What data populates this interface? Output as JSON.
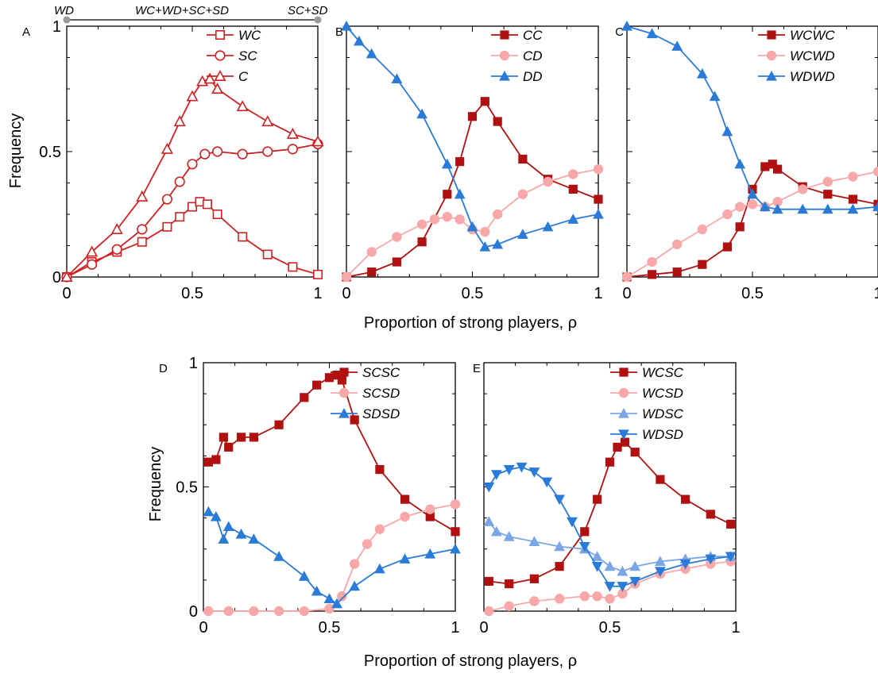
{
  "figure": {
    "xlabel": "Proportion of strong players, ρ",
    "ylabel": "Frequency",
    "phase_labels": [
      "WD",
      "WC+WD+SC+SD",
      "SC+SD"
    ]
  },
  "colors": {
    "dark_red": "#b01010",
    "pink": "#f8a8a8",
    "blue": "#2a7ad8",
    "light_blue": "#7aa6e6",
    "phase_dot": "#999999"
  },
  "chart_data": [
    {
      "panel": "A",
      "type": "line",
      "xlim": [
        0,
        1
      ],
      "ylim": [
        0,
        1
      ],
      "xticks": [
        0,
        0.5,
        1
      ],
      "yticks": [
        0,
        0.5,
        1
      ],
      "xtick_labels": [
        "0",
        "0.5",
        "1"
      ],
      "ytick_labels": [
        "0",
        "0.5",
        "1"
      ],
      "legend_position": "top-right",
      "series": [
        {
          "name": "WC",
          "color": "#cc2222",
          "marker": "square-open",
          "x": [
            0,
            0.1,
            0.2,
            0.3,
            0.4,
            0.45,
            0.5,
            0.53,
            0.56,
            0.6,
            0.7,
            0.8,
            0.9,
            1
          ],
          "y": [
            0,
            0.06,
            0.1,
            0.14,
            0.2,
            0.24,
            0.28,
            0.3,
            0.29,
            0.25,
            0.16,
            0.09,
            0.04,
            0.01
          ]
        },
        {
          "name": "SC",
          "color": "#cc2222",
          "marker": "circle-open",
          "x": [
            0,
            0.1,
            0.2,
            0.3,
            0.4,
            0.45,
            0.5,
            0.55,
            0.6,
            0.7,
            0.8,
            0.9,
            1
          ],
          "y": [
            0,
            0.05,
            0.11,
            0.19,
            0.31,
            0.38,
            0.45,
            0.49,
            0.5,
            0.49,
            0.5,
            0.51,
            0.53
          ]
        },
        {
          "name": "C",
          "color": "#cc2222",
          "marker": "triangle-open",
          "x": [
            0,
            0.1,
            0.2,
            0.3,
            0.4,
            0.45,
            0.5,
            0.54,
            0.57,
            0.6,
            0.7,
            0.8,
            0.9,
            1
          ],
          "y": [
            0,
            0.1,
            0.19,
            0.32,
            0.51,
            0.62,
            0.72,
            0.78,
            0.79,
            0.75,
            0.68,
            0.62,
            0.57,
            0.54
          ]
        }
      ]
    },
    {
      "panel": "B",
      "type": "line",
      "xlim": [
        0,
        1
      ],
      "ylim": [
        0,
        1
      ],
      "xticks": [
        0,
        0.5,
        1
      ],
      "yticks": [
        0,
        0.5,
        1
      ],
      "xtick_labels": [
        "0",
        "0.5",
        "1"
      ],
      "ytick_labels": [],
      "legend_position": "top-right",
      "series": [
        {
          "name": "CC",
          "color": "#b01010",
          "marker": "square",
          "x": [
            0,
            0.1,
            0.2,
            0.3,
            0.4,
            0.45,
            0.5,
            0.55,
            0.6,
            0.7,
            0.8,
            0.9,
            1
          ],
          "y": [
            0,
            0.02,
            0.06,
            0.14,
            0.33,
            0.46,
            0.64,
            0.7,
            0.62,
            0.47,
            0.39,
            0.35,
            0.31
          ]
        },
        {
          "name": "CD",
          "color": "#f8a8a8",
          "marker": "circle",
          "x": [
            0,
            0.1,
            0.2,
            0.3,
            0.35,
            0.4,
            0.45,
            0.5,
            0.55,
            0.6,
            0.7,
            0.8,
            0.9,
            1
          ],
          "y": [
            0,
            0.1,
            0.16,
            0.21,
            0.23,
            0.24,
            0.23,
            0.19,
            0.18,
            0.25,
            0.33,
            0.38,
            0.41,
            0.43
          ]
        },
        {
          "name": "DD",
          "color": "#2a7ad8",
          "marker": "triangle",
          "x": [
            0,
            0.05,
            0.1,
            0.2,
            0.3,
            0.4,
            0.45,
            0.5,
            0.55,
            0.6,
            0.7,
            0.8,
            0.9,
            1
          ],
          "y": [
            1,
            0.94,
            0.89,
            0.79,
            0.65,
            0.45,
            0.33,
            0.2,
            0.12,
            0.13,
            0.17,
            0.2,
            0.23,
            0.25
          ]
        }
      ]
    },
    {
      "panel": "C",
      "type": "line",
      "xlim": [
        0,
        1
      ],
      "ylim": [
        0,
        1
      ],
      "xticks": [
        0,
        0.5,
        1
      ],
      "yticks": [
        0,
        0.5,
        1
      ],
      "xtick_labels": [
        "0",
        "0.5",
        "1"
      ],
      "ytick_labels": [],
      "legend_position": "top-right",
      "series": [
        {
          "name": "WCWC",
          "color": "#b01010",
          "marker": "square",
          "x": [
            0,
            0.1,
            0.2,
            0.3,
            0.4,
            0.45,
            0.5,
            0.55,
            0.58,
            0.6,
            0.7,
            0.8,
            0.9,
            1
          ],
          "y": [
            0,
            0.01,
            0.02,
            0.05,
            0.12,
            0.2,
            0.35,
            0.44,
            0.45,
            0.43,
            0.36,
            0.33,
            0.31,
            0.29
          ]
        },
        {
          "name": "WCWD",
          "color": "#f8a8a8",
          "marker": "circle",
          "x": [
            0,
            0.1,
            0.2,
            0.3,
            0.4,
            0.45,
            0.5,
            0.55,
            0.6,
            0.7,
            0.8,
            0.9,
            1
          ],
          "y": [
            0,
            0.06,
            0.13,
            0.19,
            0.25,
            0.28,
            0.29,
            0.28,
            0.3,
            0.35,
            0.38,
            0.4,
            0.42
          ]
        },
        {
          "name": "WDWD",
          "color": "#2a7ad8",
          "marker": "triangle",
          "x": [
            0,
            0.1,
            0.2,
            0.3,
            0.35,
            0.4,
            0.45,
            0.5,
            0.55,
            0.6,
            0.7,
            0.8,
            0.9,
            1
          ],
          "y": [
            1,
            0.97,
            0.92,
            0.81,
            0.72,
            0.58,
            0.45,
            0.33,
            0.28,
            0.27,
            0.27,
            0.27,
            0.27,
            0.28
          ]
        }
      ]
    },
    {
      "panel": "D",
      "type": "line",
      "xlim": [
        0,
        1
      ],
      "ylim": [
        0,
        1
      ],
      "xticks": [
        0,
        0.5,
        1
      ],
      "yticks": [
        0,
        0.5,
        1
      ],
      "xtick_labels": [
        "0",
        "0.5",
        "1"
      ],
      "ytick_labels": [
        "0",
        "0.5",
        "1"
      ],
      "legend_position": "top-right",
      "series": [
        {
          "name": "SCSC",
          "color": "#b01010",
          "marker": "square",
          "x": [
            0.02,
            0.05,
            0.08,
            0.1,
            0.15,
            0.2,
            0.3,
            0.4,
            0.45,
            0.5,
            0.53,
            0.55,
            0.6,
            0.7,
            0.8,
            0.9,
            1
          ],
          "y": [
            0.6,
            0.61,
            0.7,
            0.66,
            0.7,
            0.7,
            0.75,
            0.86,
            0.91,
            0.94,
            0.95,
            0.93,
            0.77,
            0.57,
            0.45,
            0.38,
            0.32
          ]
        },
        {
          "name": "SCSD",
          "color": "#f8a8a8",
          "marker": "circle",
          "x": [
            0.02,
            0.1,
            0.2,
            0.3,
            0.4,
            0.5,
            0.55,
            0.6,
            0.65,
            0.7,
            0.8,
            0.9,
            1
          ],
          "y": [
            0,
            0,
            0,
            0,
            0,
            0.01,
            0.06,
            0.19,
            0.27,
            0.33,
            0.38,
            0.41,
            0.43
          ]
        },
        {
          "name": "SDSD",
          "color": "#2a7ad8",
          "marker": "triangle",
          "x": [
            0.02,
            0.05,
            0.08,
            0.1,
            0.15,
            0.2,
            0.3,
            0.4,
            0.45,
            0.5,
            0.53,
            0.6,
            0.7,
            0.8,
            0.9,
            1
          ],
          "y": [
            0.4,
            0.38,
            0.29,
            0.34,
            0.31,
            0.29,
            0.22,
            0.14,
            0.08,
            0.05,
            0.03,
            0.1,
            0.17,
            0.21,
            0.23,
            0.25
          ]
        }
      ]
    },
    {
      "panel": "E",
      "type": "line",
      "xlim": [
        0,
        1
      ],
      "ylim": [
        0,
        1
      ],
      "xticks": [
        0,
        0.5,
        1
      ],
      "yticks": [
        0,
        0.5,
        1
      ],
      "xtick_labels": [
        "0",
        "0.5",
        "1"
      ],
      "ytick_labels": [],
      "legend_position": "top-right",
      "series": [
        {
          "name": "WCSC",
          "color": "#b01010",
          "marker": "square",
          "x": [
            0.02,
            0.1,
            0.2,
            0.3,
            0.4,
            0.45,
            0.5,
            0.53,
            0.56,
            0.6,
            0.7,
            0.8,
            0.9,
            0.98
          ],
          "y": [
            0.12,
            0.11,
            0.13,
            0.18,
            0.32,
            0.45,
            0.6,
            0.66,
            0.68,
            0.64,
            0.53,
            0.45,
            0.39,
            0.35
          ]
        },
        {
          "name": "WCSD",
          "color": "#f8a8a8",
          "marker": "circle",
          "x": [
            0.02,
            0.1,
            0.2,
            0.3,
            0.4,
            0.45,
            0.5,
            0.55,
            0.6,
            0.7,
            0.8,
            0.9,
            0.98
          ],
          "y": [
            0,
            0.02,
            0.04,
            0.05,
            0.06,
            0.06,
            0.05,
            0.07,
            0.11,
            0.15,
            0.17,
            0.19,
            0.2
          ]
        },
        {
          "name": "WDSC",
          "color": "#7aa6e6",
          "marker": "triangle",
          "x": [
            0.02,
            0.05,
            0.1,
            0.2,
            0.3,
            0.4,
            0.45,
            0.5,
            0.55,
            0.6,
            0.7,
            0.8,
            0.9,
            0.98
          ],
          "y": [
            0.36,
            0.32,
            0.3,
            0.28,
            0.26,
            0.25,
            0.22,
            0.18,
            0.16,
            0.18,
            0.2,
            0.21,
            0.22,
            0.22
          ]
        },
        {
          "name": "WDSD",
          "color": "#2a7ad8",
          "marker": "triangle-down",
          "x": [
            0.02,
            0.05,
            0.1,
            0.15,
            0.2,
            0.25,
            0.3,
            0.35,
            0.4,
            0.45,
            0.5,
            0.55,
            0.6,
            0.7,
            0.8,
            0.9,
            0.98
          ],
          "y": [
            0.5,
            0.55,
            0.57,
            0.58,
            0.56,
            0.52,
            0.45,
            0.36,
            0.26,
            0.18,
            0.1,
            0.1,
            0.12,
            0.16,
            0.19,
            0.21,
            0.22
          ]
        }
      ]
    }
  ]
}
